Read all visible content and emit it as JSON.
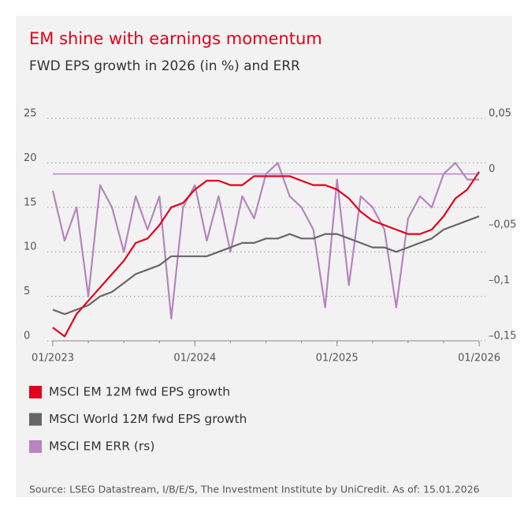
{
  "chart_data": {
    "type": "line",
    "title": "EM shine with earnings momentum",
    "subtitle": "FWD EPS growth in 2026 (in %) and ERR",
    "source": "Source: LSEG Datastream, I/B/E/S, The Investment Institute by UniCredit. As of: 15.01.2026",
    "x": [
      "01/2023",
      "02/2023",
      "03/2023",
      "04/2023",
      "05/2023",
      "06/2023",
      "07/2023",
      "08/2023",
      "09/2023",
      "10/2023",
      "11/2023",
      "12/2023",
      "01/2024",
      "02/2024",
      "03/2024",
      "04/2024",
      "05/2024",
      "06/2024",
      "07/2024",
      "08/2024",
      "09/2024",
      "10/2024",
      "11/2024",
      "12/2024",
      "01/2025",
      "02/2025",
      "03/2025",
      "04/2025",
      "05/2025",
      "06/2025",
      "07/2025",
      "08/2025",
      "09/2025",
      "10/2025",
      "11/2025",
      "12/2025",
      "01/2026"
    ],
    "xticks": [
      "01/2023",
      "01/2024",
      "01/2025",
      "01/2026"
    ],
    "series": [
      {
        "name": "MSCI EM 12M fwd EPS growth",
        "color": "#e2001a",
        "values": [
          1.5,
          0.5,
          3,
          4.5,
          6,
          7.5,
          9,
          11,
          11.5,
          13,
          15,
          15.5,
          17,
          18,
          18,
          17.5,
          17.5,
          18.5,
          18.5,
          18.5,
          18.5,
          18,
          17.5,
          17.5,
          17,
          16,
          14.5,
          13.5,
          13,
          12.5,
          12,
          12,
          12.5,
          14,
          16,
          17,
          19
        ]
      },
      {
        "name": "MSCI World 12M fwd EPS growth",
        "color": "#666666",
        "values": [
          3.5,
          3,
          3.5,
          4,
          5,
          5.5,
          6.5,
          7.5,
          8,
          8.5,
          9.5,
          9.5,
          9.5,
          9.5,
          10,
          10.5,
          11,
          11,
          11.5,
          11.5,
          12,
          11.5,
          11.5,
          12,
          12,
          11.5,
          11,
          10.5,
          10.5,
          10,
          10.5,
          11,
          11.5,
          12.5,
          13,
          13.5,
          14
        ]
      },
      {
        "name": "MSCI EM ERR (rs)",
        "color": "#b784c0",
        "axis": "y2",
        "values": [
          -0.015,
          -0.06,
          -0.03,
          -0.11,
          -0.01,
          -0.03,
          -0.07,
          -0.02,
          -0.05,
          -0.02,
          -0.13,
          -0.03,
          -0.01,
          -0.06,
          -0.02,
          -0.07,
          -0.02,
          -0.04,
          0,
          0.01,
          -0.02,
          -0.03,
          -0.05,
          -0.12,
          -0.005,
          -0.1,
          -0.02,
          -0.03,
          -0.05,
          -0.12,
          -0.04,
          -0.02,
          -0.03,
          0,
          0.01,
          -0.005,
          -0.005
        ]
      }
    ],
    "ylim": [
      0,
      25
    ],
    "yticks": [
      0,
      5,
      10,
      15,
      20,
      25
    ],
    "y2lim": [
      -0.15,
      0.05
    ],
    "y2ticks": [
      {
        "value": -0.15,
        "label": "–0,15"
      },
      {
        "value": -0.1,
        "label": "–0,1"
      },
      {
        "value": -0.05,
        "label": "–0,05"
      },
      {
        "value": 0,
        "label": "0"
      },
      {
        "value": 0.05,
        "label": "0,05"
      }
    ],
    "reference_line": {
      "axis": "y2",
      "value": 0,
      "color": "#b784c0"
    },
    "grid": true
  }
}
